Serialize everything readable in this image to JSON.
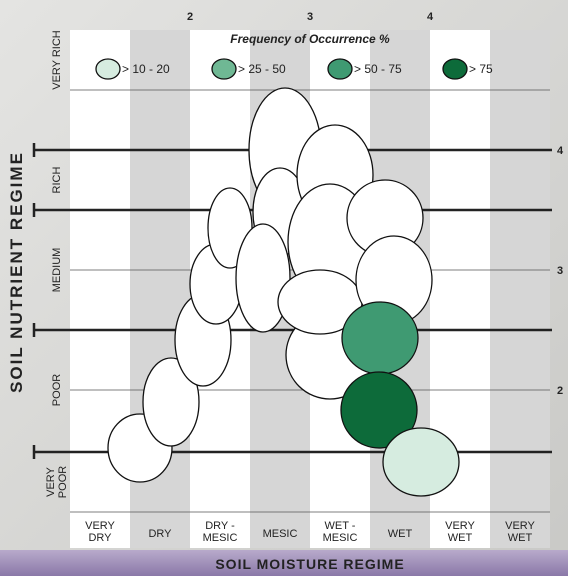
{
  "legend": {
    "title": "Frequency of Occurrence %",
    "items": [
      "> 10 - 20",
      "> 25 - 50",
      "> 50 - 75",
      "> 75"
    ]
  },
  "top_labels": [
    "2",
    "3",
    "4"
  ],
  "right_labels": [
    "4",
    "3",
    "2"
  ],
  "rows": [
    [
      "VERY RICH"
    ],
    [
      "RICH"
    ],
    [
      "MEDIUM"
    ],
    [
      "POOR"
    ],
    [
      "VERY",
      "POOR"
    ]
  ],
  "columns": [
    [
      "VERY",
      "DRY"
    ],
    [
      "DRY"
    ],
    [
      "DRY -",
      "MESIC"
    ],
    [
      "MESIC"
    ],
    [
      "WET -",
      "MESIC"
    ],
    [
      "WET"
    ],
    [
      "VERY",
      "WET"
    ],
    [
      "VERY",
      "WET"
    ]
  ],
  "y_title": "SOIL NUTRIENT REGIME",
  "x_title": "SOIL MOISTURE REGIME"
}
